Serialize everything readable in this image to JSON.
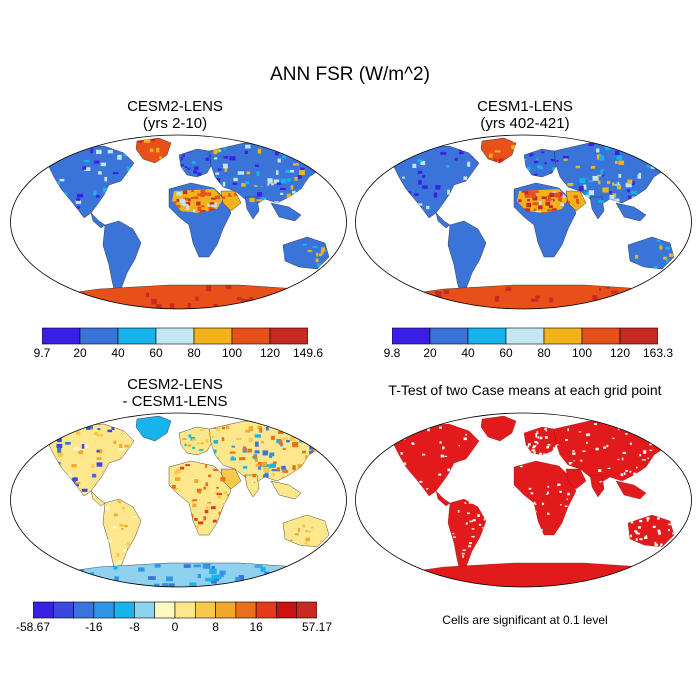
{
  "figure": {
    "title": "ANN FSR (W/m^2)",
    "note": "Cells are significant at 0.1 level"
  },
  "panels": {
    "p1": {
      "title_line1": "CESM2-LENS",
      "title_line2": "(yrs 2-10)"
    },
    "p2": {
      "title_line1": "CESM1-LENS",
      "title_line2": "(yrs 402-421)"
    },
    "p3": {
      "title_line1": "CESM2-LENS",
      "title_line2": "- CESM1-LENS"
    },
    "p4": {
      "title_line1": "T-Test of two Case means at each grid point"
    }
  },
  "chart_data": [
    {
      "type": "heatmap",
      "title": "CESM2-LENS (yrs 2-10)",
      "colorbar": {
        "labels": [
          "9.7",
          "20",
          "40",
          "60",
          "80",
          "100",
          "120",
          "149.6"
        ],
        "colors": [
          "#3a1fe6",
          "#3a74d9",
          "#17b3ec",
          "#c2e6f2",
          "#f2b21a",
          "#e8501a",
          "#c82a22"
        ]
      }
    },
    {
      "type": "heatmap",
      "title": "CESM1-LENS (yrs 402-421)",
      "colorbar": {
        "labels": [
          "9.8",
          "20",
          "40",
          "60",
          "80",
          "100",
          "120",
          "163.3"
        ],
        "colors": [
          "#3a1fe6",
          "#3a74d9",
          "#17b3ec",
          "#c2e6f2",
          "#f2b21a",
          "#e8501a",
          "#c82a22"
        ]
      }
    },
    {
      "type": "heatmap",
      "title": "CESM2-LENS - CESM1-LENS",
      "colorbar": {
        "labels": [
          "-58.67",
          "-16",
          "-8",
          "0",
          "8",
          "16",
          "57.17"
        ],
        "label_positions": [
          0,
          3,
          5,
          7,
          9,
          11,
          14
        ],
        "colors": [
          "#3a1fe6",
          "#3a48e0",
          "#3a74d9",
          "#2f95e4",
          "#17b3ec",
          "#8ed2f0",
          "#fdf7c2",
          "#fde78c",
          "#f7c94a",
          "#f2a82a",
          "#e8701a",
          "#e83a1a",
          "#d01010",
          "#c82a22"
        ]
      }
    },
    {
      "type": "heatmap",
      "title": "T-Test of two Case means at each grid point",
      "significance_color": "#e31a1c"
    }
  ]
}
